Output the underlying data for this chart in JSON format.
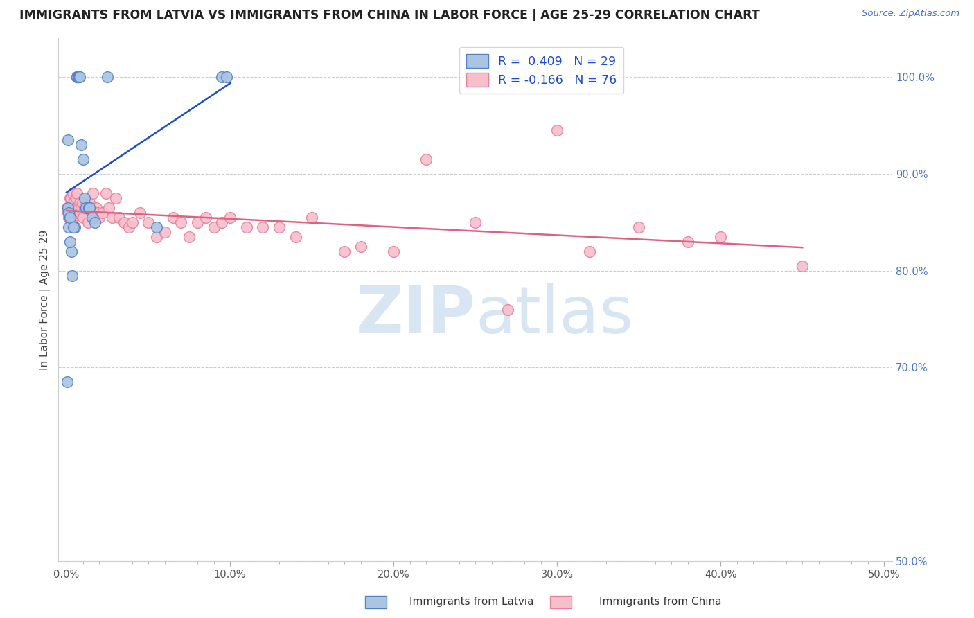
{
  "title": "IMMIGRANTS FROM LATVIA VS IMMIGRANTS FROM CHINA IN LABOR FORCE | AGE 25-29 CORRELATION CHART",
  "source": "Source: ZipAtlas.com",
  "ylabel": "In Labor Force | Age 25-29",
  "x_tick_labels": [
    "0.0%",
    "",
    "",
    "",
    "",
    "",
    "",
    "",
    "",
    "",
    "10.0%",
    "",
    "",
    "",
    "",
    "",
    "",
    "",
    "",
    "",
    "20.0%",
    "",
    "",
    "",
    "",
    "",
    "",
    "",
    "",
    "",
    "30.0%",
    "",
    "",
    "",
    "",
    "",
    "",
    "",
    "",
    "",
    "40.0%",
    "",
    "",
    "",
    "",
    "",
    "",
    "",
    "",
    "",
    "50.0%"
  ],
  "x_tick_values": [
    0,
    1,
    2,
    3,
    4,
    5,
    6,
    7,
    8,
    9,
    10,
    11,
    12,
    13,
    14,
    15,
    16,
    17,
    18,
    19,
    20,
    21,
    22,
    23,
    24,
    25,
    26,
    27,
    28,
    29,
    30,
    31,
    32,
    33,
    34,
    35,
    36,
    37,
    38,
    39,
    40,
    41,
    42,
    43,
    44,
    45,
    46,
    47,
    48,
    49,
    50
  ],
  "x_major_ticks": [
    0,
    10,
    20,
    30,
    40,
    50
  ],
  "x_major_labels": [
    "0.0%",
    "10.0%",
    "20.0%",
    "30.0%",
    "40.0%",
    "50.0%"
  ],
  "y_tick_labels": [
    "100.0%",
    "90.0%",
    "80.0%",
    "70.0%",
    "50.0%"
  ],
  "y_tick_values": [
    100.0,
    90.0,
    80.0,
    70.0,
    50.0
  ],
  "xlim": [
    -0.5,
    50.5
  ],
  "ylim": [
    50.0,
    104.0
  ],
  "latvia_color": "#aac4e2",
  "latvia_edge_color": "#5580c8",
  "china_color": "#f5bfcc",
  "china_edge_color": "#e8809a",
  "latvia_line_color": "#1a4dcc",
  "china_line_color": "#e06080",
  "R_latvia": 0.409,
  "N_latvia": 29,
  "R_china": -0.166,
  "N_china": 76,
  "latvia_x": [
    0.05,
    0.08,
    0.1,
    0.12,
    0.14,
    0.3,
    0.35,
    0.5,
    0.62,
    0.65,
    0.7,
    0.72,
    0.75,
    0.78,
    0.9,
    1.1,
    1.2,
    1.35,
    1.4,
    1.55,
    1.75,
    0.2,
    0.22,
    0.42,
    1.0,
    2.5,
    5.5,
    9.5,
    9.8
  ],
  "latvia_y": [
    68.5,
    86.5,
    93.5,
    86.0,
    84.5,
    82.0,
    79.5,
    84.5,
    100.0,
    100.0,
    100.0,
    100.0,
    100.0,
    100.0,
    93.0,
    87.5,
    86.5,
    86.5,
    86.5,
    85.5,
    85.0,
    85.5,
    83.0,
    84.5,
    91.5,
    100.0,
    84.5,
    100.0,
    100.0
  ],
  "china_x": [
    0.05,
    0.08,
    0.1,
    0.12,
    0.15,
    0.18,
    0.2,
    0.22,
    0.25,
    0.28,
    0.3,
    0.32,
    0.35,
    0.38,
    0.4,
    0.42,
    0.45,
    0.5,
    0.55,
    0.6,
    0.65,
    0.7,
    0.75,
    0.8,
    0.85,
    0.9,
    0.95,
    1.0,
    1.1,
    1.2,
    1.3,
    1.4,
    1.5,
    1.6,
    1.7,
    1.8,
    1.9,
    2.0,
    2.2,
    2.4,
    2.6,
    2.8,
    3.0,
    3.2,
    3.5,
    3.8,
    4.0,
    4.5,
    5.0,
    5.5,
    6.0,
    6.5,
    7.0,
    7.5,
    8.0,
    8.5,
    9.0,
    9.5,
    10.0,
    11.0,
    12.0,
    13.0,
    14.0,
    15.0,
    17.0,
    18.0,
    20.0,
    22.0,
    25.0,
    27.0,
    30.0,
    32.0,
    35.0,
    38.0,
    40.0,
    45.0
  ],
  "china_y": [
    86.5,
    86.2,
    86.0,
    85.5,
    86.5,
    85.5,
    87.5,
    85.5,
    87.5,
    86.0,
    85.0,
    86.5,
    85.5,
    88.0,
    87.0,
    87.0,
    86.0,
    86.0,
    86.5,
    87.5,
    88.0,
    86.5,
    86.0,
    87.0,
    86.0,
    86.5,
    87.0,
    85.5,
    86.5,
    86.5,
    85.0,
    87.0,
    86.5,
    88.0,
    85.5,
    86.5,
    86.0,
    85.5,
    86.0,
    88.0,
    86.5,
    85.5,
    87.5,
    85.5,
    85.0,
    84.5,
    85.0,
    86.0,
    85.0,
    83.5,
    84.0,
    85.5,
    85.0,
    83.5,
    85.0,
    85.5,
    84.5,
    85.0,
    85.5,
    84.5,
    84.5,
    84.5,
    83.5,
    85.5,
    82.0,
    82.5,
    82.0,
    91.5,
    85.0,
    76.0,
    94.5,
    82.0,
    84.5,
    83.0,
    83.5,
    80.5
  ],
  "watermark_zip": "ZIP",
  "watermark_atlas": "atlas",
  "background_color": "#ffffff",
  "grid_color": "#cccccc",
  "marker_size": 130
}
